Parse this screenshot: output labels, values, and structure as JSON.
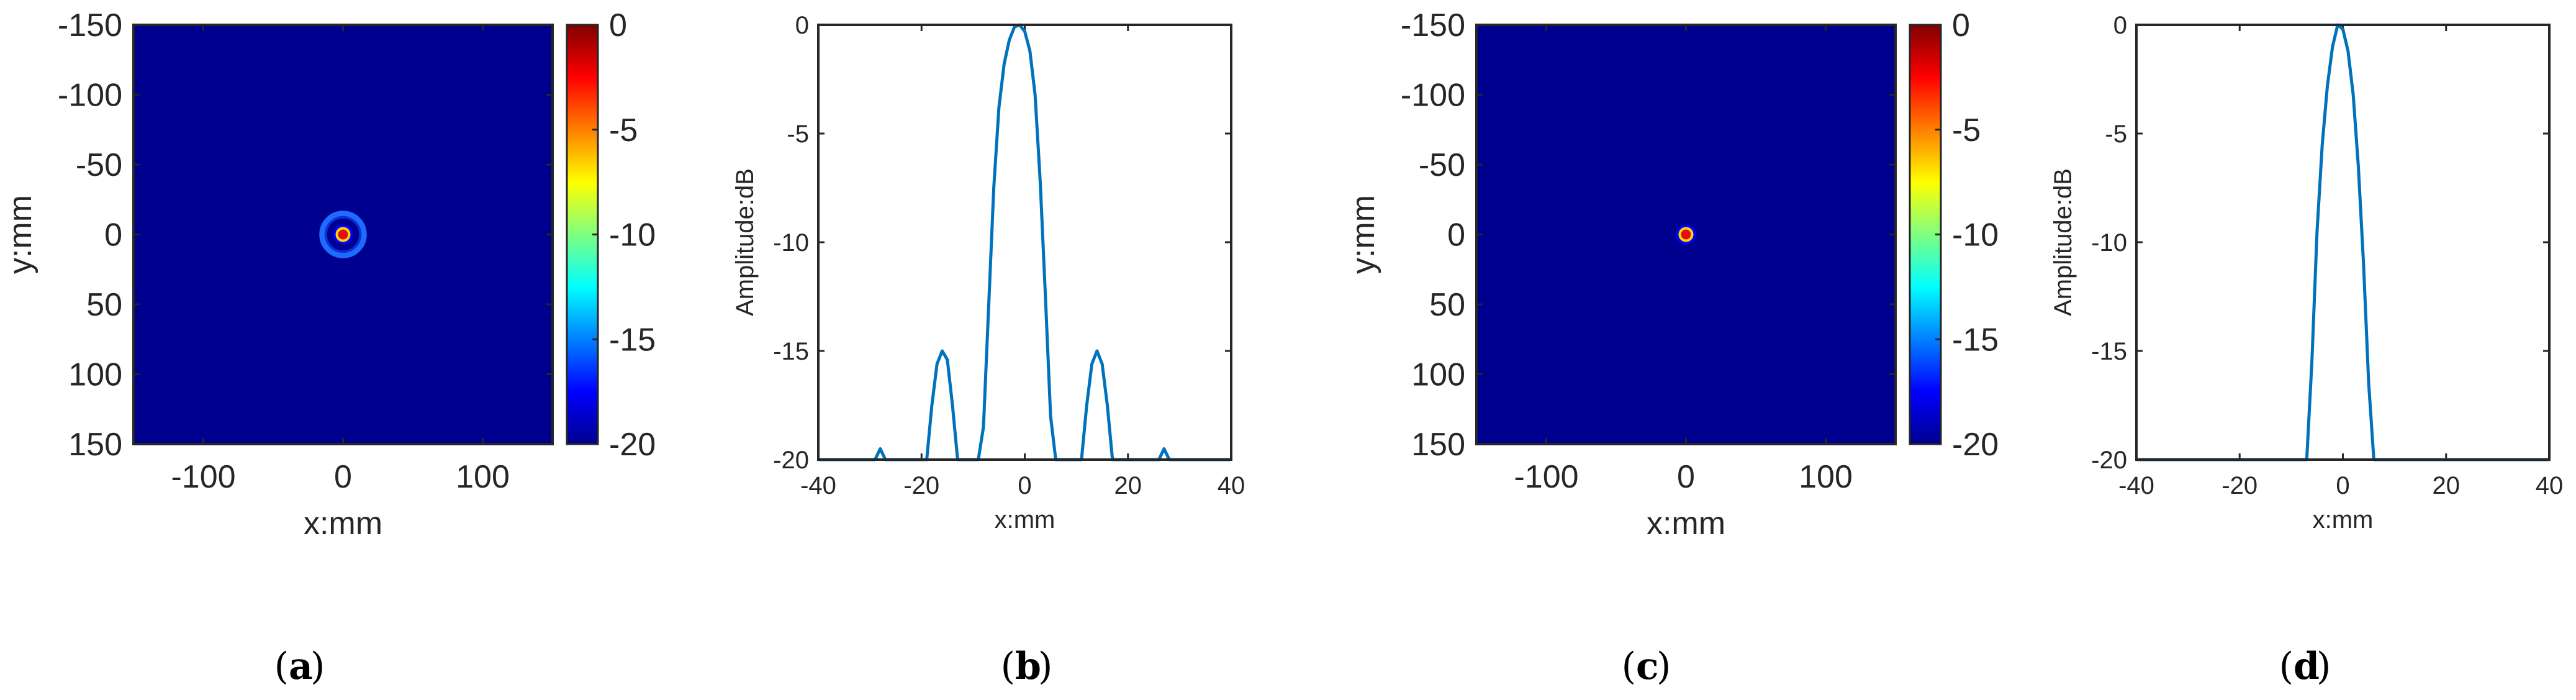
{
  "chart_data": [
    {
      "panel": "a",
      "type": "heatmap",
      "xlabel": "x:mm",
      "ylabel": "y:mm",
      "xlim": [
        -150,
        150
      ],
      "ylim": [
        -150,
        150
      ],
      "xticks": [
        "-100",
        "0",
        "100"
      ],
      "xtick_values": [
        -100,
        0,
        100
      ],
      "yticks": [
        "-150",
        "-100",
        "-50",
        "0",
        "50",
        "100",
        "150"
      ],
      "ytick_values": [
        -150,
        -100,
        -50,
        0,
        50,
        100,
        150
      ],
      "colorbar": {
        "ticks": [
          "0",
          "-5",
          "-10",
          "-15",
          "-20"
        ],
        "tick_values": [
          0,
          -5,
          -10,
          -15,
          -20
        ],
        "range": [
          -20,
          0
        ]
      },
      "peak": {
        "x": 0,
        "y": 0,
        "value_db": 0
      },
      "sidelobe_ring_radius_mm": 15,
      "background_db": -20
    },
    {
      "panel": "b",
      "type": "line",
      "xlabel": "x:mm",
      "ylabel": "Amplitude:dB",
      "xlim": [
        -40,
        40
      ],
      "ylim": [
        -20,
        0
      ],
      "xticks": [
        "-40",
        "-20",
        "0",
        "20",
        "40"
      ],
      "xtick_values": [
        -40,
        -20,
        0,
        20,
        40
      ],
      "yticks": [
        "0",
        "-5",
        "-10",
        "-15",
        "-20"
      ],
      "ytick_values": [
        0,
        -5,
        -10,
        -15,
        -20
      ],
      "x": [
        -40,
        -29,
        -28,
        -27,
        -19,
        -18,
        -17,
        -16,
        -15,
        -14,
        -13,
        -12,
        -9,
        -8,
        -7,
        -6,
        -5,
        -4,
        -3,
        -2,
        -1,
        0,
        1,
        2,
        3,
        4,
        5,
        6,
        7,
        8,
        11,
        12,
        13,
        14,
        15,
        16,
        17,
        18,
        26,
        27,
        28,
        40
      ],
      "y": [
        -20,
        -20,
        -19.5,
        -20,
        -20,
        -17.5,
        -15.6,
        -15,
        -15.4,
        -17.5,
        -20,
        -20,
        -20,
        -18.5,
        -13,
        -7.5,
        -3.8,
        -1.8,
        -0.7,
        -0.1,
        0,
        -0.3,
        -1.2,
        -3.2,
        -7.2,
        -12.5,
        -18,
        -20,
        -20,
        -20,
        -20,
        -17.5,
        -15.6,
        -15,
        -15.6,
        -17.5,
        -20,
        -20,
        -20,
        -19.5,
        -20,
        -20
      ]
    },
    {
      "panel": "c",
      "type": "heatmap",
      "xlabel": "x:mm",
      "ylabel": "y:mm",
      "xlim": [
        -150,
        150
      ],
      "ylim": [
        -150,
        150
      ],
      "xticks": [
        "-100",
        "0",
        "100"
      ],
      "xtick_values": [
        -100,
        0,
        100
      ],
      "yticks": [
        "-150",
        "-100",
        "-50",
        "0",
        "50",
        "100",
        "150"
      ],
      "ytick_values": [
        -150,
        -100,
        -50,
        0,
        50,
        100,
        150
      ],
      "colorbar": {
        "ticks": [
          "0",
          "-5",
          "-10",
          "-15",
          "-20"
        ],
        "tick_values": [
          0,
          -5,
          -10,
          -15,
          -20
        ],
        "range": [
          -20,
          0
        ]
      },
      "peak": {
        "x": 0,
        "y": 0,
        "value_db": 0
      },
      "background_db": -20
    },
    {
      "panel": "d",
      "type": "line",
      "xlabel": "x:mm",
      "ylabel": "Amplitude:dB",
      "xlim": [
        -40,
        40
      ],
      "ylim": [
        -20,
        0
      ],
      "xticks": [
        "-40",
        "-20",
        "0",
        "20",
        "40"
      ],
      "xtick_values": [
        -40,
        -20,
        0,
        20,
        40
      ],
      "yticks": [
        "0",
        "-5",
        "-10",
        "-15",
        "-20"
      ],
      "ytick_values": [
        0,
        -5,
        -10,
        -15,
        -20
      ],
      "x": [
        -40,
        -7,
        -6,
        -5,
        -4,
        -3,
        -2,
        -1,
        0,
        1,
        2,
        3,
        4,
        5,
        6,
        40
      ],
      "y": [
        -20,
        -20,
        -15.5,
        -9.5,
        -5.5,
        -2.8,
        -1,
        0,
        -0.2,
        -1.2,
        -3.2,
        -6.5,
        -11,
        -16.5,
        -20,
        -20
      ]
    }
  ],
  "captions": [
    "a",
    "b",
    "c",
    "d"
  ]
}
